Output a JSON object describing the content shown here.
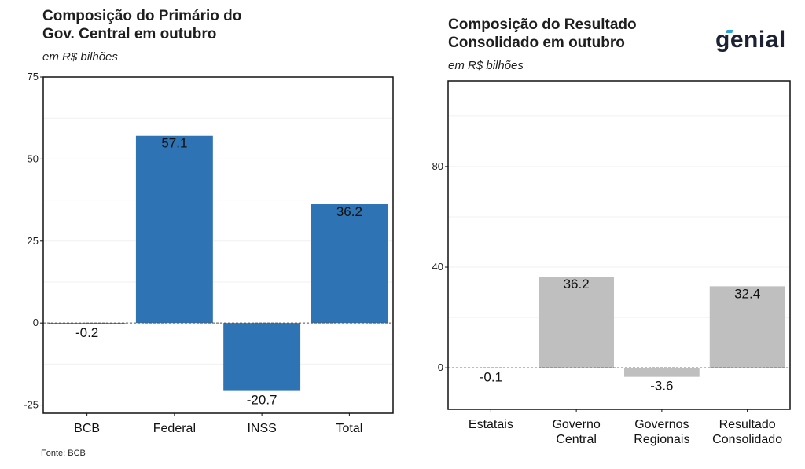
{
  "logo": {
    "text": "genial",
    "accent_color": "#2aa3d6"
  },
  "source": "Fonte: BCB",
  "chart_data": [
    {
      "type": "bar",
      "title": "Composição do Primário do Gov. Central em outubro",
      "title_lines": [
        "Composição do Primário do",
        "Gov. Central em outubro"
      ],
      "subtitle": "em R$ bilhões",
      "categories": [
        "BCB",
        "Federal",
        "INSS",
        "Total"
      ],
      "values": [
        -0.2,
        57.1,
        -20.7,
        36.2
      ],
      "labels": [
        "-0.2",
        "57.1",
        "-20.7",
        "36.2"
      ],
      "ylim": [
        -27.5,
        75
      ],
      "yticks": [
        -25,
        0,
        25,
        50,
        75
      ],
      "ytick_labels": [
        "-25",
        "0",
        "25",
        "50",
        "75"
      ],
      "bar_color": "#2e74b5",
      "zero_line": "dashed"
    },
    {
      "type": "bar",
      "title": "Composição do Resultado Consolidado em outubro",
      "title_lines": [
        "Composição do Resultado",
        "Consolidado em outubro"
      ],
      "subtitle": "em R$ bilhões",
      "categories": [
        "Estatais",
        "Governo Central",
        "Governos Regionais",
        "Resultado Consolidado"
      ],
      "category_lines": [
        [
          "Estatais"
        ],
        [
          "Governo",
          "Central"
        ],
        [
          "Governos",
          "Regionais"
        ],
        [
          "Resultado",
          "Consolidado"
        ]
      ],
      "values": [
        -0.1,
        36.2,
        -3.6,
        32.4
      ],
      "labels": [
        "-0.1",
        "36.2",
        "-3.6",
        "32.4"
      ],
      "ylim": [
        -16.5,
        114
      ],
      "yticks": [
        0,
        40,
        80
      ],
      "ytick_labels": [
        "0",
        "40",
        "80"
      ],
      "bar_color": "#bfbfbf",
      "zero_line": "dashed"
    }
  ]
}
